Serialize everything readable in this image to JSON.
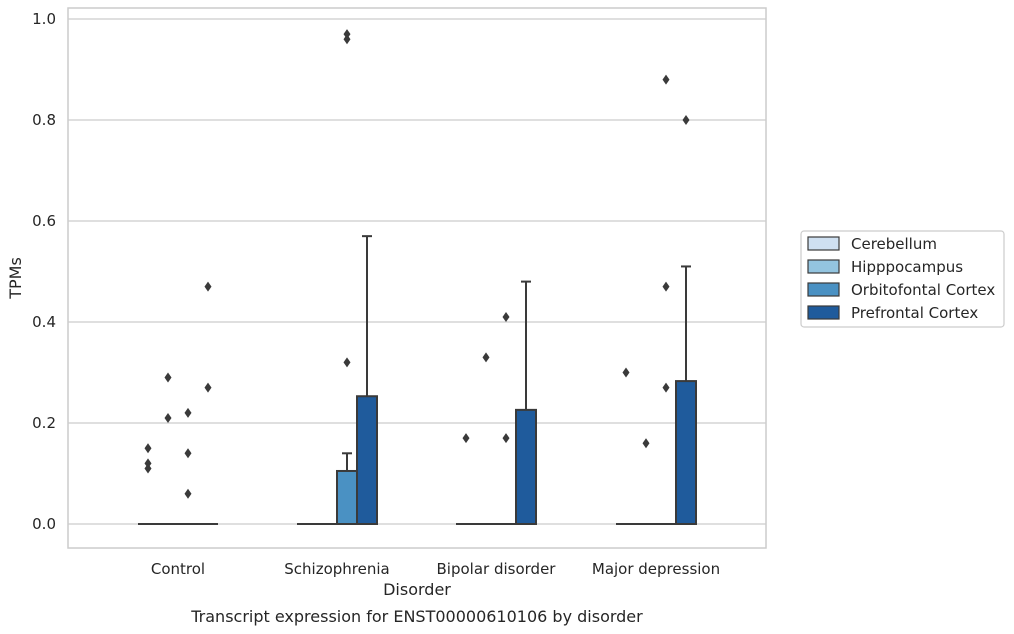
{
  "caption": "Transcript expression for ENST00000610106 by disorder",
  "chart_data": {
    "type": "box",
    "xlabel": "Disorder",
    "ylabel": "TPMs",
    "ylim": [
      -0.048,
      1.02
    ],
    "yticks": [
      "0.0",
      "0.2",
      "0.4",
      "0.6",
      "0.8",
      "1.0"
    ],
    "ytick_values": [
      0.0,
      0.2,
      0.4,
      0.6,
      0.8,
      1.0
    ],
    "grid": "horizontal",
    "legend_position": "right",
    "categories": [
      "Control",
      "Schizophrenia",
      "Bipolar disorder",
      "Major depression"
    ],
    "colors": [
      "#cfe0f1",
      "#93c4df",
      "#4a91c3",
      "#1f5b9c"
    ],
    "edge_color": "#3a3a3a",
    "series": [
      {
        "name": "Cerebellum",
        "boxes": [
          {
            "q1": 0,
            "median": 0,
            "q3": 0,
            "whisker_low": 0,
            "whisker_high": 0,
            "outliers": [
              0.15,
              0.12,
              0.11
            ]
          },
          {
            "q1": 0,
            "median": 0,
            "q3": 0,
            "whisker_low": 0,
            "whisker_high": 0,
            "outliers": []
          },
          {
            "q1": 0,
            "median": 0,
            "q3": 0,
            "whisker_low": 0,
            "whisker_high": 0,
            "outliers": [
              0.17
            ]
          },
          {
            "q1": 0,
            "median": 0,
            "q3": 0,
            "whisker_low": 0,
            "whisker_high": 0,
            "outliers": [
              0.3
            ]
          }
        ]
      },
      {
        "name": "Hipppocampus",
        "boxes": [
          {
            "q1": 0,
            "median": 0,
            "q3": 0,
            "whisker_low": 0,
            "whisker_high": 0,
            "outliers": [
              0.29,
              0.21
            ]
          },
          {
            "q1": 0,
            "median": 0,
            "q3": 0,
            "whisker_low": 0,
            "whisker_high": 0,
            "outliers": []
          },
          {
            "q1": 0,
            "median": 0,
            "q3": 0,
            "whisker_low": 0,
            "whisker_high": 0,
            "outliers": [
              0.33
            ]
          },
          {
            "q1": 0,
            "median": 0,
            "q3": 0,
            "whisker_low": 0,
            "whisker_high": 0,
            "outliers": [
              0.16
            ]
          }
        ]
      },
      {
        "name": "Orbitofontal Cortex",
        "boxes": [
          {
            "q1": 0,
            "median": 0,
            "q3": 0,
            "whisker_low": 0,
            "whisker_high": 0,
            "outliers": [
              0.22,
              0.14,
              0.06
            ]
          },
          {
            "q1": 0,
            "median": 0,
            "q3": 0.105,
            "whisker_low": 0,
            "whisker_high": 0.14,
            "outliers": [
              0.97,
              0.96,
              0.32
            ]
          },
          {
            "q1": 0,
            "median": 0,
            "q3": 0,
            "whisker_low": 0,
            "whisker_high": 0,
            "outliers": [
              0.41,
              0.17
            ]
          },
          {
            "q1": 0,
            "median": 0,
            "q3": 0,
            "whisker_low": 0,
            "whisker_high": 0,
            "outliers": [
              0.88,
              0.47,
              0.27
            ]
          }
        ]
      },
      {
        "name": "Prefrontal Cortex",
        "boxes": [
          {
            "q1": 0,
            "median": 0,
            "q3": 0,
            "whisker_low": 0,
            "whisker_high": 0,
            "outliers": [
              0.47,
              0.27
            ]
          },
          {
            "q1": 0,
            "median": 0,
            "q3": 0.253,
            "whisker_low": 0,
            "whisker_high": 0.57,
            "outliers": []
          },
          {
            "q1": 0,
            "median": 0,
            "q3": 0.226,
            "whisker_low": 0,
            "whisker_high": 0.48,
            "outliers": []
          },
          {
            "q1": 0,
            "median": 0,
            "q3": 0.283,
            "whisker_low": 0,
            "whisker_high": 0.51,
            "outliers": [
              0.8
            ]
          }
        ]
      }
    ]
  }
}
